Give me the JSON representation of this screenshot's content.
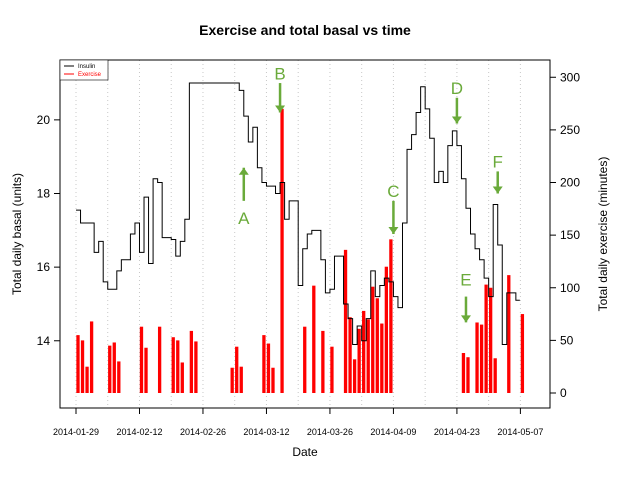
{
  "chart_data": {
    "type": "bar+line",
    "title": "Exercise and total basal vs time",
    "xlabel": "Date",
    "ylabel_left": "Total daily basal (units)",
    "ylabel_right": "Total daily exercise (minutes)",
    "x_range": [
      "2014-01-29",
      "2014-05-10"
    ],
    "y_left_range": [
      12.5,
      21.3
    ],
    "y_right_range": [
      0,
      305
    ],
    "x_ticks": [
      "2014-01-29",
      "2014-02-12",
      "2014-02-26",
      "2014-03-12",
      "2014-03-26",
      "2014-04-09",
      "2014-04-23",
      "2014-05-07"
    ],
    "y_left_ticks": [
      14,
      16,
      18,
      20
    ],
    "y_right_ticks": [
      0,
      50,
      100,
      150,
      200,
      250,
      300
    ],
    "grid": "vertical dotted lines weekly",
    "legend": {
      "position": "top-left",
      "entries": [
        {
          "label": "Insulin",
          "color": "#000000"
        },
        {
          "label": "Exercise",
          "color": "#ff0000"
        }
      ]
    },
    "series": [
      {
        "name": "Insulin",
        "kind": "step",
        "color": "#000000",
        "points": [
          [
            "2014-01-29",
            17.55
          ],
          [
            "2014-01-30",
            17.2
          ],
          [
            "2014-02-01",
            17.2
          ],
          [
            "2014-02-02",
            16.4
          ],
          [
            "2014-02-03",
            16.7
          ],
          [
            "2014-02-04",
            15.6
          ],
          [
            "2014-02-05",
            15.4
          ],
          [
            "2014-02-07",
            15.9
          ],
          [
            "2014-02-08",
            16.2
          ],
          [
            "2014-02-10",
            16.9
          ],
          [
            "2014-02-11",
            17.2
          ],
          [
            "2014-02-12",
            16.4
          ],
          [
            "2014-02-13",
            17.9
          ],
          [
            "2014-02-14",
            16.1
          ],
          [
            "2014-02-15",
            18.4
          ],
          [
            "2014-02-16",
            18.3
          ],
          [
            "2014-02-17",
            16.8
          ],
          [
            "2014-02-19",
            16.75
          ],
          [
            "2014-02-20",
            16.3
          ],
          [
            "2014-02-21",
            16.7
          ],
          [
            "2014-02-22",
            17.3
          ],
          [
            "2014-02-23",
            21.0
          ],
          [
            "2014-03-06",
            20.8
          ],
          [
            "2014-03-07",
            20.1
          ],
          [
            "2014-03-08",
            19.4
          ],
          [
            "2014-03-09",
            19.8
          ],
          [
            "2014-03-10",
            18.7
          ],
          [
            "2014-03-11",
            18.3
          ],
          [
            "2014-03-12",
            18.2
          ],
          [
            "2014-03-14",
            18.0
          ],
          [
            "2014-03-15",
            18.3
          ],
          [
            "2014-03-16",
            17.3
          ],
          [
            "2014-03-17",
            17.8
          ],
          [
            "2014-03-19",
            15.5
          ],
          [
            "2014-03-20",
            16.5
          ],
          [
            "2014-03-21",
            16.9
          ],
          [
            "2014-03-22",
            17.0
          ],
          [
            "2014-03-24",
            16.2
          ],
          [
            "2014-03-25",
            15.3
          ],
          [
            "2014-03-26",
            15.4
          ],
          [
            "2014-03-27",
            16.3
          ],
          [
            "2014-03-29",
            15.0
          ],
          [
            "2014-03-30",
            14.6
          ],
          [
            "2014-03-31",
            13.9
          ],
          [
            "2014-04-01",
            14.4
          ],
          [
            "2014-04-02",
            14.0
          ],
          [
            "2014-04-03",
            14.6
          ],
          [
            "2014-04-04",
            15.9
          ],
          [
            "2014-04-05",
            15.2
          ],
          [
            "2014-04-06",
            15.5
          ],
          [
            "2014-04-07",
            15.7
          ],
          [
            "2014-04-08",
            15.6
          ],
          [
            "2014-04-09",
            15.2
          ],
          [
            "2014-04-10",
            14.9
          ],
          [
            "2014-04-11",
            17.2
          ],
          [
            "2014-04-12",
            19.2
          ],
          [
            "2014-04-13",
            19.6
          ],
          [
            "2014-04-14",
            20.2
          ],
          [
            "2014-04-15",
            20.9
          ],
          [
            "2014-04-16",
            20.3
          ],
          [
            "2014-04-17",
            19.5
          ],
          [
            "2014-04-18",
            18.3
          ],
          [
            "2014-04-19",
            18.6
          ],
          [
            "2014-04-20",
            18.3
          ],
          [
            "2014-04-21",
            19.3
          ],
          [
            "2014-04-22",
            19.7
          ],
          [
            "2014-04-23",
            19.3
          ],
          [
            "2014-04-24",
            18.4
          ],
          [
            "2014-04-25",
            17.6
          ],
          [
            "2014-04-26",
            16.9
          ],
          [
            "2014-04-27",
            16.5
          ],
          [
            "2014-04-28",
            16.2
          ],
          [
            "2014-04-29",
            15.7
          ],
          [
            "2014-04-30",
            15.2
          ],
          [
            "2014-05-01",
            17.7
          ],
          [
            "2014-05-02",
            16.6
          ],
          [
            "2014-05-03",
            13.9
          ],
          [
            "2014-05-04",
            15.3
          ],
          [
            "2014-05-05",
            15.3
          ],
          [
            "2014-05-06",
            15.1
          ]
        ]
      },
      {
        "name": "Exercise",
        "kind": "bar",
        "color": "#ff0000",
        "points": [
          [
            "2014-01-29",
            55
          ],
          [
            "2014-01-30",
            50
          ],
          [
            "2014-01-31",
            25
          ],
          [
            "2014-02-01",
            68
          ],
          [
            "2014-02-05",
            45
          ],
          [
            "2014-02-06",
            48
          ],
          [
            "2014-02-07",
            30
          ],
          [
            "2014-02-12",
            63
          ],
          [
            "2014-02-13",
            43
          ],
          [
            "2014-02-16",
            63
          ],
          [
            "2014-02-19",
            53
          ],
          [
            "2014-02-20",
            50
          ],
          [
            "2014-02-21",
            29
          ],
          [
            "2014-02-23",
            59
          ],
          [
            "2014-02-24",
            49
          ],
          [
            "2014-03-04",
            24
          ],
          [
            "2014-03-05",
            44
          ],
          [
            "2014-03-06",
            25
          ],
          [
            "2014-03-11",
            55
          ],
          [
            "2014-03-12",
            47
          ],
          [
            "2014-03-13",
            24
          ],
          [
            "2014-03-15",
            270
          ],
          [
            "2014-03-20",
            63
          ],
          [
            "2014-03-22",
            102
          ],
          [
            "2014-03-24",
            59
          ],
          [
            "2014-03-26",
            44
          ],
          [
            "2014-03-29",
            136
          ],
          [
            "2014-03-30",
            72
          ],
          [
            "2014-03-31",
            32
          ],
          [
            "2014-04-01",
            61
          ],
          [
            "2014-04-02",
            78
          ],
          [
            "2014-04-03",
            70
          ],
          [
            "2014-04-04",
            101
          ],
          [
            "2014-04-05",
            90
          ],
          [
            "2014-04-06",
            66
          ],
          [
            "2014-04-07",
            120
          ],
          [
            "2014-04-08",
            146
          ],
          [
            "2014-04-24",
            38
          ],
          [
            "2014-04-25",
            34
          ],
          [
            "2014-04-27",
            67
          ],
          [
            "2014-04-28",
            65
          ],
          [
            "2014-04-29",
            103
          ],
          [
            "2014-04-30",
            100
          ],
          [
            "2014-05-01",
            33
          ],
          [
            "2014-05-04",
            112
          ],
          [
            "2014-05-07",
            75
          ]
        ]
      }
    ],
    "annotations": [
      {
        "label": "A",
        "date": "2014-03-07",
        "direction": "up",
        "arrow_from": 17.8,
        "arrow_to": 18.7,
        "label_at": 17.5
      },
      {
        "label": "B",
        "date": "2014-03-15",
        "direction": "down",
        "arrow_from": 21.0,
        "arrow_to": 20.2,
        "label_at": 21.1
      },
      {
        "label": "C",
        "date": "2014-04-09",
        "direction": "down",
        "arrow_from": 17.8,
        "arrow_to": 16.9,
        "label_at": 17.9
      },
      {
        "label": "D",
        "date": "2014-04-23",
        "direction": "down",
        "arrow_from": 20.6,
        "arrow_to": 19.9,
        "label_at": 20.7
      },
      {
        "label": "E",
        "date": "2014-04-25",
        "direction": "down",
        "arrow_from": 15.2,
        "arrow_to": 14.5,
        "label_at": 15.5
      },
      {
        "label": "F",
        "date": "2014-05-02",
        "direction": "down",
        "arrow_from": 18.6,
        "arrow_to": 18.0,
        "label_at": 18.7
      }
    ]
  }
}
